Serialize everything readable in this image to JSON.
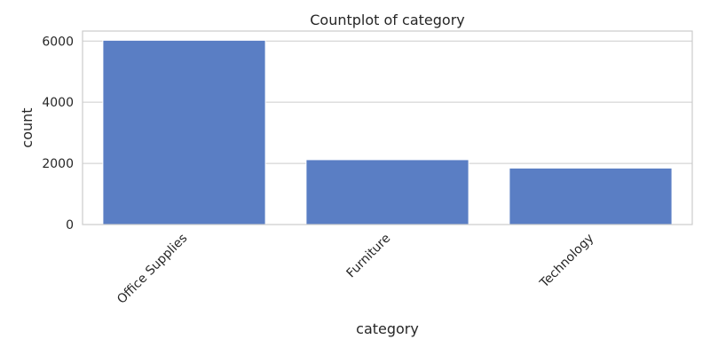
{
  "chart_data": {
    "type": "bar",
    "title": "Countplot of category",
    "xlabel": "category",
    "ylabel": "count",
    "categories": [
      "Office Supplies",
      "Furniture",
      "Technology"
    ],
    "values": [
      6026,
      2121,
      1847
    ],
    "ylim": [
      0,
      6327
    ],
    "yticks": [
      0,
      2000,
      4000,
      6000
    ],
    "grid": true,
    "bar_color": "#5a7ec4"
  }
}
